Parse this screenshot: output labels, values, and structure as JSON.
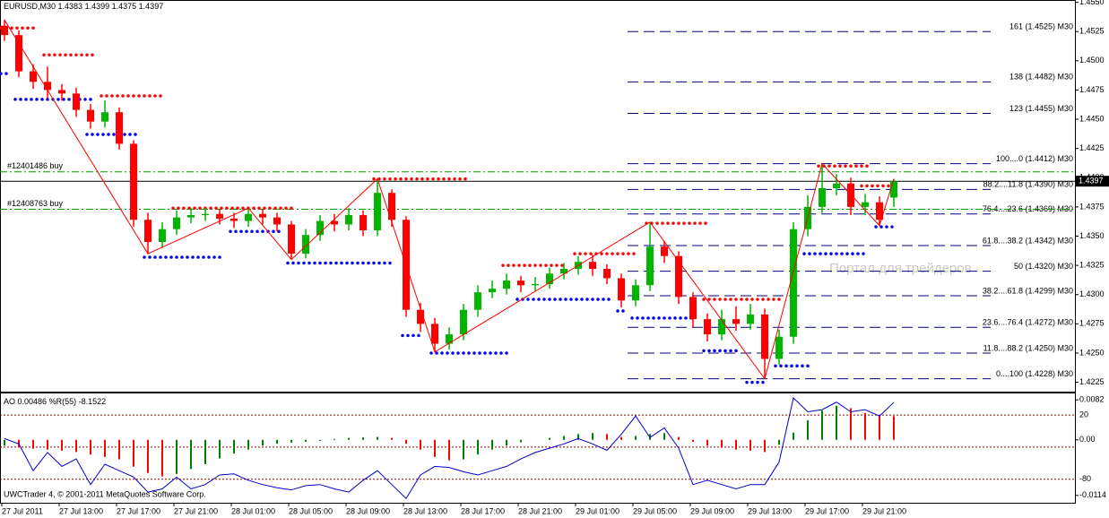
{
  "chart_data": [
    {
      "type": "candlestick",
      "symbol": "EURUSD,M30",
      "categories": [
        "27 Jul 2011",
        null,
        null,
        null,
        "27 Jul 13:00",
        null,
        null,
        null,
        "27 Jul 17:00",
        null,
        null,
        null,
        "27 Jul 21:00",
        null,
        null,
        null,
        "28 Jul 01:00",
        null,
        null,
        null,
        "28 Jul 05:00",
        null,
        null,
        null,
        "28 Jul 09:00",
        null,
        null,
        null,
        "28 Jul 13:00",
        null,
        null,
        null,
        "28 Jul 17:00",
        null,
        null,
        null,
        "28 Jul 21:00",
        null,
        null,
        null,
        "29 Jul 01:00",
        null,
        null,
        null,
        "29 Jul 05:00",
        null,
        null,
        null,
        "29 Jul 09:00",
        null,
        null,
        null,
        "29 Jul 13:00",
        null,
        null,
        null,
        "29 Jul 17:00",
        null,
        null,
        null,
        "29 Jul 21:00",
        null,
        null
      ],
      "open": [
        1.453,
        1.4522,
        1.4491,
        1.4482,
        1.4475,
        1.4472,
        1.4458,
        1.4448,
        1.4456,
        1.4429,
        1.4364,
        1.4345,
        1.4356,
        1.4366,
        1.4368,
        1.4369,
        1.4365,
        1.4363,
        1.4369,
        1.4366,
        1.436,
        1.4335,
        1.4351,
        1.4363,
        1.436,
        1.4368,
        1.4355,
        1.4387,
        1.4364,
        1.4287,
        1.4275,
        1.4258,
        1.4266,
        1.4287,
        1.4302,
        1.4305,
        1.4312,
        1.4308,
        1.4309,
        1.4318,
        1.4322,
        1.4328,
        1.4322,
        1.4314,
        1.4295,
        1.4308,
        1.4341,
        1.4333,
        1.4298,
        1.4279,
        1.4266,
        1.4279,
        1.4275,
        1.4283,
        1.4245,
        1.4264,
        1.4356,
        1.4375,
        1.4391,
        1.4395,
        1.4375,
        1.4379,
        1.4383
      ],
      "high": [
        1.4535,
        1.4526,
        1.4497,
        1.4495,
        1.448,
        1.4477,
        1.4463,
        1.4466,
        1.446,
        1.4432,
        1.437,
        1.4362,
        1.4372,
        1.4374,
        1.4374,
        1.4373,
        1.437,
        1.4374,
        1.4373,
        1.437,
        1.4363,
        1.4356,
        1.4368,
        1.4369,
        1.4374,
        1.4372,
        1.4399,
        1.439,
        1.4367,
        1.4293,
        1.428,
        1.4272,
        1.4292,
        1.4308,
        1.4312,
        1.4318,
        1.4316,
        1.4315,
        1.4323,
        1.4327,
        1.4333,
        1.4334,
        1.4326,
        1.4318,
        1.4313,
        1.4362,
        1.4346,
        1.4337,
        1.4302,
        1.4284,
        1.4287,
        1.429,
        1.4292,
        1.4288,
        1.427,
        1.4362,
        1.4385,
        1.4412,
        1.4403,
        1.44,
        1.4386,
        1.4384,
        1.4399
      ],
      "low": [
        1.4517,
        1.4486,
        1.4476,
        1.4468,
        1.4466,
        1.4452,
        1.4442,
        1.4443,
        1.4424,
        1.4358,
        1.4335,
        1.434,
        1.4351,
        1.4361,
        1.4363,
        1.436,
        1.4357,
        1.4358,
        1.436,
        1.4354,
        1.433,
        1.4331,
        1.4346,
        1.4354,
        1.4355,
        1.435,
        1.435,
        1.4358,
        1.4281,
        1.4268,
        1.4251,
        1.4253,
        1.4261,
        1.4281,
        1.4297,
        1.43,
        1.4302,
        1.4303,
        1.4305,
        1.4313,
        1.4317,
        1.4316,
        1.4309,
        1.4289,
        1.429,
        1.4303,
        1.4327,
        1.4292,
        1.4272,
        1.426,
        1.4261,
        1.4269,
        1.427,
        1.4228,
        1.424,
        1.4258,
        1.435,
        1.437,
        1.4385,
        1.4368,
        1.4368,
        1.4359,
        1.4375
      ],
      "close": [
        1.4522,
        1.4491,
        1.4482,
        1.4475,
        1.4472,
        1.4458,
        1.4448,
        1.4456,
        1.4429,
        1.4364,
        1.4345,
        1.4356,
        1.4366,
        1.4368,
        1.4369,
        1.4365,
        1.4363,
        1.4369,
        1.4366,
        1.436,
        1.4335,
        1.4351,
        1.4363,
        1.436,
        1.4368,
        1.4355,
        1.4387,
        1.4364,
        1.4287,
        1.4275,
        1.4258,
        1.4266,
        1.4287,
        1.4302,
        1.4305,
        1.4312,
        1.4308,
        1.4309,
        1.4318,
        1.4322,
        1.4328,
        1.4322,
        1.4314,
        1.4295,
        1.4308,
        1.4341,
        1.4333,
        1.4298,
        1.4279,
        1.4266,
        1.4279,
        1.4275,
        1.4283,
        1.4245,
        1.4264,
        1.4356,
        1.4375,
        1.4391,
        1.4395,
        1.4375,
        1.4379,
        1.4364,
        1.4397
      ],
      "up_color": "#00b400",
      "down_color": "#ff0000",
      "ylim": [
        1.4217,
        1.4552
      ],
      "yticks": [
        1.4225,
        {
          "value": 1.425,
          "label": "1.4250"
        },
        1.4275,
        {
          "value": 1.43,
          "label": "1.4300"
        },
        1.4325,
        {
          "value": 1.435,
          "label": "1.4350"
        },
        1.4375,
        {
          "value": 1.44,
          "label": "1.4400"
        },
        1.4425,
        {
          "value": 1.445,
          "label": "1.4450"
        },
        1.4475,
        {
          "value": 1.45,
          "label": "1.4500"
        },
        1.4525,
        {
          "value": 1.455,
          "label": "1.4550"
        }
      ],
      "zigzag": {
        "color": "#ff0000",
        "x": [
          0,
          10,
          17,
          20,
          26,
          30,
          45,
          53,
          57,
          61,
          62
        ],
        "y": [
          1.4535,
          1.4335,
          1.4374,
          1.433,
          1.4399,
          1.4251,
          1.4362,
          1.4228,
          1.4412,
          1.4359,
          1.4399
        ]
      },
      "fractal_levels": {
        "upper": {
          "color": "#ff0000",
          "levels": [
            {
              "start": 0,
              "end": 2,
              "value": 1.4528
            },
            {
              "start": 3,
              "end": 6,
              "value": 1.4505
            },
            {
              "start": 7,
              "end": 11,
              "value": 1.447
            },
            {
              "start": 12,
              "end": 20,
              "value": 1.4374
            },
            {
              "start": 26,
              "end": 32,
              "value": 1.4399
            },
            {
              "start": 35,
              "end": 39,
              "value": 1.4325
            },
            {
              "start": 40,
              "end": 44,
              "value": 1.4335
            },
            {
              "start": 45,
              "end": 49,
              "value": 1.4361
            },
            {
              "start": 49,
              "end": 54,
              "value": 1.4296
            },
            {
              "start": 57,
              "end": 60,
              "value": 1.441
            },
            {
              "start": 60,
              "end": 62,
              "value": 1.4393
            }
          ]
        },
        "lower": {
          "color": "#0000ff",
          "levels": [
            {
              "start": 0,
              "end": 0,
              "value": 1.4489
            },
            {
              "start": 1,
              "end": 6,
              "value": 1.4467
            },
            {
              "start": 6,
              "end": 9,
              "value": 1.4437
            },
            {
              "start": 10,
              "end": 15,
              "value": 1.4332
            },
            {
              "start": 16,
              "end": 19,
              "value": 1.4354
            },
            {
              "start": 20,
              "end": 27,
              "value": 1.4327
            },
            {
              "start": 28,
              "end": 29,
              "value": 1.4265
            },
            {
              "start": 30,
              "end": 35,
              "value": 1.425
            },
            {
              "start": 36,
              "end": 42,
              "value": 1.4296
            },
            {
              "start": 43,
              "end": 43,
              "value": 1.4286
            },
            {
              "start": 44,
              "end": 48,
              "value": 1.428
            },
            {
              "start": 49,
              "end": 51,
              "value": 1.4252
            },
            {
              "start": 52,
              "end": 53,
              "value": 1.4225
            },
            {
              "start": 54,
              "end": 56,
              "value": 1.4239
            },
            {
              "start": 56,
              "end": 60,
              "value": 1.4335
            },
            {
              "start": 61,
              "end": 62,
              "value": 1.4358
            }
          ]
        }
      },
      "fib_color": "#000080",
      "fib_levels": [
        {
          "value": 1.4525,
          "label": "161 (1.4525) M30"
        },
        {
          "value": 1.4482,
          "label": "138 (1.4482) M30"
        },
        {
          "value": 1.4455,
          "label": "123 (1.4455) M30"
        },
        {
          "value": 1.4412,
          "label": "100....0 (1.4412) M30"
        },
        {
          "value": 1.439,
          "label": "88.2....11.8 (1.4390) M30"
        },
        {
          "value": 1.4369,
          "label": "76.4....23.6 (1.4369) M30"
        },
        {
          "value": 1.4342,
          "label": "61.8....38.2 (1.4342) M30"
        },
        {
          "value": 1.432,
          "label": "50 (1.4320) M30"
        },
        {
          "value": 1.4299,
          "label": "38.2....61.8 (1.4299) M30"
        },
        {
          "value": 1.4272,
          "label": "23.6....76.4 (1.4272) M30"
        },
        {
          "value": 1.425,
          "label": "11.8....88.2 (1.4250) M30"
        },
        {
          "value": 1.4228,
          "label": "0....100 (1.4228) M30"
        }
      ],
      "order_color": "#00a000",
      "orders": [
        {
          "label": "#12401486 buy",
          "value": 1.4405
        },
        {
          "label": "#12408763 buy",
          "value": 1.4373
        }
      ],
      "watermark": "Портал для трейдеров"
    },
    {
      "type": "oscillator",
      "ao": {
        "name": "AO",
        "up_color": "#008000",
        "down_color": "#ff0000",
        "values": [
          -0.0012,
          -0.0015,
          -0.0018,
          -0.002,
          -0.0022,
          -0.0025,
          -0.003,
          -0.0035,
          -0.004,
          -0.0055,
          -0.0068,
          -0.0075,
          -0.007,
          -0.006,
          -0.005,
          -0.0038,
          -0.0028,
          -0.002,
          -0.0012,
          -0.0008,
          -0.0006,
          -0.0004,
          -0.0002,
          0.0002,
          0.0004,
          0.0005,
          0.0006,
          0.0004,
          -0.0008,
          -0.002,
          -0.0035,
          -0.0042,
          -0.004,
          -0.003,
          -0.002,
          -0.0012,
          -0.0005,
          0.0,
          0.0004,
          0.0008,
          0.0012,
          0.0014,
          0.0012,
          0.0006,
          0.0008,
          0.0012,
          0.0014,
          0.0006,
          -0.0004,
          -0.0012,
          -0.0016,
          -0.002,
          -0.0022,
          -0.0025,
          -0.001,
          0.0015,
          0.004,
          0.006,
          0.007,
          0.0065,
          0.0055,
          0.005,
          0.00486
        ],
        "ylim": [
          -0.0129,
          0.0097
        ],
        "yticks": [
          0.0082,
          {
            "value": 0,
            "label": "0.00"
          },
          -0.0114
        ]
      },
      "wpr": {
        "name": "%R(55)",
        "color": "#0000cc",
        "values": [
          -42,
          -47,
          -72,
          -55,
          -68,
          -61,
          -85,
          -66,
          -72,
          -78,
          -92,
          -89,
          -78,
          -89,
          -85,
          -76,
          -75,
          -81,
          -85,
          -88,
          -90,
          -86,
          -85,
          -89,
          -92,
          -81,
          -72,
          -85,
          -98,
          -76,
          -68,
          -69,
          -73,
          -76,
          -72,
          -68,
          -61,
          -55,
          -51,
          -47,
          -42,
          -47,
          -53,
          -38,
          -21,
          -41,
          -32,
          -51,
          -85,
          -81,
          -85,
          -89,
          -85,
          -85,
          -64,
          -4,
          -17,
          -15,
          -8,
          -17,
          -15,
          -21,
          -8.1522
        ],
        "ylim": [
          -102,
          1
        ],
        "yticks": [
          {
            "value": -20,
            "label": "20"
          },
          -80
        ],
        "levels": [
          -50
        ],
        "level_color": "#8b0000"
      },
      "footer": "UWCTrader 4, © 2001-2011 MetaQuotes Software Corp."
    }
  ]
}
